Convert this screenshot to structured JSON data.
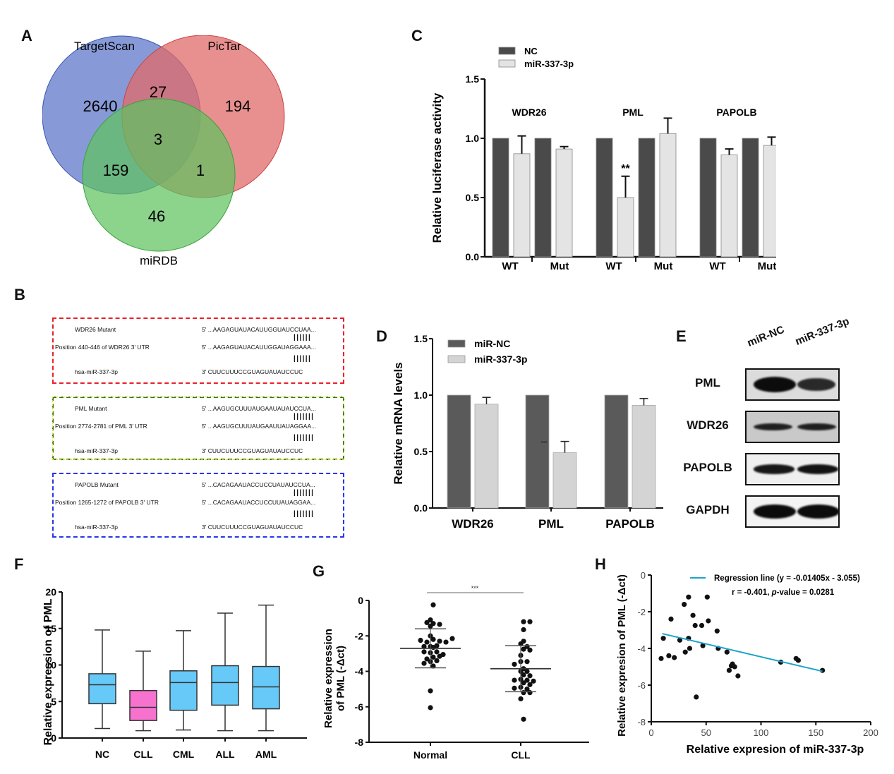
{
  "panels": {
    "A": "A",
    "B": "B",
    "C": "C",
    "D": "D",
    "E": "E",
    "F": "F",
    "G": "G",
    "H": "H"
  },
  "chart_data": [
    {
      "panel": "A",
      "type": "venn",
      "sets": [
        {
          "name": "TargetScan",
          "color": "#5f78c9"
        },
        {
          "name": "PicTar",
          "color": "#e07070"
        },
        {
          "name": "miRDB",
          "color": "#5fbf5f"
        }
      ],
      "regions": {
        "TargetScan_only": 2640,
        "PicTar_only": 194,
        "miRDB_only": 46,
        "TargetScan_PicTar": 27,
        "TargetScan_miRDB": 159,
        "PicTar_miRDB": 1,
        "all_three": 3
      }
    },
    {
      "panel": "B",
      "type": "table",
      "boxes": [
        {
          "color": "#e8202a",
          "mutant_label": "WDR26 Mutant",
          "mutant_seq": "5' ...AAGAGUAUACAUUGGUAUCCUAA...",
          "position_label": "Position 440-446 of WDR26 3' UTR",
          "wt_seq": "5' ...AAGAGUAUACAUUGGAUAGGAAA...",
          "mirna_label": "hsa-miR-337-3p",
          "mirna_seq": "3'  CUUCUUUCCGUAGUAUAUCCUC",
          "pair_marks": "||||||"
        },
        {
          "color": "#2a7a1e",
          "mutant_label": "PML Mutant",
          "mutant_seq": "5' ...AAGUGCUUUAUGAAUAUAUCCUA...",
          "position_label": "Position 2774-2781 of PML 3' UTR",
          "wt_seq": "5' ...AAGUGCUUUAUGAAUUAUAGGAA...",
          "mirna_label": "hsa-miR-337-3p",
          "mirna_seq": "3'    CUUCUUUCCGUAGUAUAUCCUC",
          "pair_marks": "|||||||"
        },
        {
          "color": "#2a35e8",
          "mutant_label": "PAPOLB Mutant",
          "mutant_seq": "5' ...CACAGAAUACCUCCUAUAUCCUA...",
          "position_label": "Position 1265-1272 of PAPOLB 3' UTR",
          "wt_seq": "5' ...CACAGAAUACCUCCUUAUAGGAA...",
          "mirna_label": "hsa-miR-337-3p",
          "mirna_seq": "3'   CUUCUUUCCGUAGUAUAUCCUC",
          "pair_marks": "|||||||"
        }
      ]
    },
    {
      "panel": "C",
      "type": "bar",
      "title": "",
      "ylabel": "Relative luciferase activity",
      "xlabel": "",
      "ylim": [
        0,
        1.5
      ],
      "yticks": [
        "0.0",
        "0.5",
        "1.0",
        "1.5"
      ],
      "groups": [
        "WDR26",
        "PML",
        "PAPOLB"
      ],
      "subcategories": [
        "WT",
        "Mut"
      ],
      "legend": [
        {
          "name": "NC",
          "color": "#4a4a4a"
        },
        {
          "name": "miR-337-3p",
          "color": "#e4e4e4"
        }
      ],
      "legend_position": "top-left",
      "series": [
        {
          "name": "NC",
          "values": [
            1.0,
            1.0,
            1.0,
            1.0,
            1.0,
            1.0
          ],
          "errors": [
            0,
            0,
            0,
            0,
            0,
            0
          ]
        },
        {
          "name": "miR-337-3p",
          "values": [
            0.87,
            0.91,
            0.5,
            1.04,
            0.86,
            0.94
          ],
          "errors": [
            0.15,
            0.02,
            0.18,
            0.13,
            0.05,
            0.07
          ]
        }
      ],
      "annotations": [
        {
          "bar": "PML-WT-miR-337-3p",
          "text": "**"
        }
      ]
    },
    {
      "panel": "D",
      "type": "bar",
      "title": "",
      "ylabel": "Relative mRNA levels",
      "xlabel": "",
      "ylim": [
        0,
        1.5
      ],
      "yticks": [
        "0.0",
        "0.5",
        "1.0",
        "1.5"
      ],
      "categories": [
        "WDR26",
        "PML",
        "PAPOLB"
      ],
      "legend": [
        {
          "name": "miR-NC",
          "color": "#5a5a5a"
        },
        {
          "name": "miR-337-3p",
          "color": "#d4d4d4"
        }
      ],
      "legend_position": "top-left",
      "series": [
        {
          "name": "miR-NC",
          "values": [
            1.0,
            1.0,
            1.0
          ],
          "errors": [
            0,
            0,
            0
          ]
        },
        {
          "name": "miR-337-3p",
          "values": [
            0.92,
            0.49,
            0.91
          ],
          "errors": [
            0.06,
            0.1,
            0.06
          ]
        }
      ],
      "annotations": [
        {
          "bar": "PML",
          "text": "***"
        }
      ]
    },
    {
      "panel": "E",
      "type": "table",
      "kind": "western-blot",
      "lanes": [
        "miR-NC",
        "miR-337-3p"
      ],
      "rows": [
        {
          "protein": "PML",
          "intensity": [
            1.0,
            0.6
          ]
        },
        {
          "protein": "WDR26",
          "intensity": [
            0.7,
            0.7
          ]
        },
        {
          "protein": "PAPOLB",
          "intensity": [
            0.85,
            0.9
          ]
        },
        {
          "protein": "GAPDH",
          "intensity": [
            1.0,
            1.0
          ]
        }
      ]
    },
    {
      "panel": "F",
      "type": "box",
      "title": "",
      "ylabel": "Relative expression of PML",
      "xlabel": "",
      "ylim": [
        0,
        20
      ],
      "yticks": [
        "0",
        "5",
        "10",
        "15",
        "20"
      ],
      "categories": [
        "NC",
        "CLL",
        "CML",
        "ALL",
        "AML"
      ],
      "colors": [
        "#66c9f7",
        "#f772cf",
        "#66c9f7",
        "#66c9f7",
        "#66c9f7"
      ],
      "boxes": [
        {
          "min": 1.3,
          "q1": 4.7,
          "median": 7.3,
          "q3": 8.8,
          "max": 14.8
        },
        {
          "min": 1.0,
          "q1": 2.4,
          "median": 4.2,
          "q3": 6.5,
          "max": 11.9
        },
        {
          "min": 1.1,
          "q1": 3.8,
          "median": 7.6,
          "q3": 9.2,
          "max": 14.7
        },
        {
          "min": 1.0,
          "q1": 4.5,
          "median": 7.6,
          "q3": 9.9,
          "max": 17.1
        },
        {
          "min": 1.0,
          "q1": 4.0,
          "median": 7.0,
          "q3": 9.8,
          "max": 18.2
        }
      ]
    },
    {
      "panel": "G",
      "type": "scatter",
      "title": "",
      "ylabel": "Relative expression of PML (-Δct)",
      "xlabel": "",
      "ylim": [
        -8,
        0
      ],
      "yticks": [
        "0",
        "-2",
        "-4",
        "-6",
        "-8"
      ],
      "categories": [
        "Normal",
        "CLL"
      ],
      "significance": "***",
      "groups": [
        {
          "name": "Normal",
          "mean": -2.7,
          "sd_upper": -1.6,
          "sd_lower": -3.8,
          "points": [
            -0.25,
            -1.1,
            -1.3,
            -1.45,
            -1.35,
            -1.25,
            -2.0,
            -2.2,
            -2.3,
            -2.35,
            -2.35,
            -2.25,
            -2.15,
            -2.6,
            -2.65,
            -2.55,
            -2.6,
            -2.95,
            -2.9,
            -2.9,
            -3.05,
            -3.2,
            -3.15,
            -3.3,
            -3.45,
            -3.4,
            -3.55,
            -3.7,
            -5.1,
            -6.05
          ]
        },
        {
          "name": "CLL",
          "mean": -3.85,
          "sd_upper": -2.55,
          "sd_lower": -5.15,
          "points": [
            -1.2,
            -1.2,
            -1.65,
            -2.45,
            -2.3,
            -2.6,
            -2.75,
            -2.8,
            -3.1,
            -3.45,
            -3.45,
            -3.6,
            -3.85,
            -4.0,
            -4.0,
            -4.2,
            -4.25,
            -4.45,
            -4.5,
            -4.5,
            -4.55,
            -4.65,
            -4.75,
            -4.9,
            -5.0,
            -4.95,
            -5.2,
            -5.2,
            -5.55,
            -6.7
          ]
        }
      ]
    },
    {
      "panel": "H",
      "type": "scatter",
      "title": "",
      "xlabel": "Relative expresion of miR-337-3p",
      "ylabel": "Relative expresion of PML  (-Δct)",
      "xlim": [
        0,
        200
      ],
      "ylim": [
        -8,
        0
      ],
      "xticks": [
        "0",
        "50",
        "100",
        "150",
        "200"
      ],
      "yticks": [
        "0",
        "-2",
        "-4",
        "-6",
        "-8"
      ],
      "legend": [
        {
          "name": "Regression line (y = -0.01405x - 3.055)",
          "color": "#1aa3c8"
        }
      ],
      "stats_text": "r = -0.401,",
      "pvalue_label": "p",
      "pvalue_text": "-value = 0.0281",
      "regression": {
        "slope": -0.01405,
        "intercept": -3.055,
        "x_range": [
          10,
          156
        ]
      },
      "points": [
        [
          9,
          -4.55
        ],
        [
          11,
          -3.45
        ],
        [
          16,
          -4.4
        ],
        [
          18,
          -2.4
        ],
        [
          21,
          -4.5
        ],
        [
          26,
          -3.55
        ],
        [
          30,
          -1.6
        ],
        [
          31,
          -4.2
        ],
        [
          34,
          -1.2
        ],
        [
          34,
          -3.45
        ],
        [
          35,
          -4.0
        ],
        [
          38,
          -2.2
        ],
        [
          40,
          -2.75
        ],
        [
          41,
          -6.65
        ],
        [
          46,
          -2.75
        ],
        [
          47,
          -3.85
        ],
        [
          51,
          -1.2
        ],
        [
          52,
          -2.5
        ],
        [
          60,
          -3.05
        ],
        [
          61,
          -4.0
        ],
        [
          69,
          -4.2
        ],
        [
          71,
          -5.2
        ],
        [
          73,
          -4.95
        ],
        [
          74,
          -4.85
        ],
        [
          76,
          -5.0
        ],
        [
          79,
          -5.5
        ],
        [
          118,
          -4.75
        ],
        [
          132,
          -4.55
        ],
        [
          134,
          -4.65
        ],
        [
          156,
          -5.2
        ]
      ]
    }
  ]
}
